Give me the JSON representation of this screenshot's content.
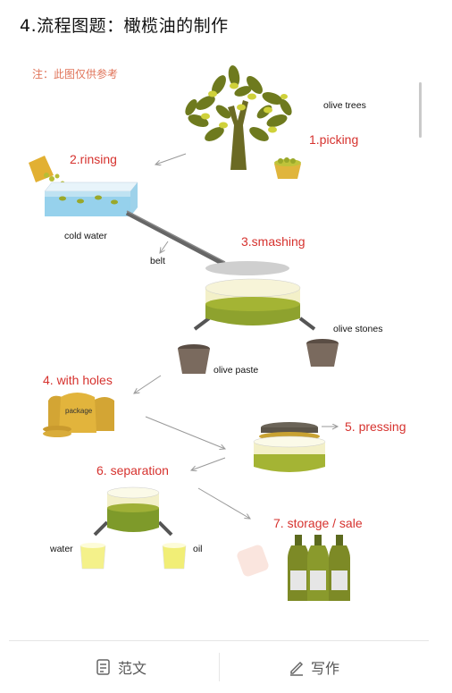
{
  "title": "4.流程图题：橄榄油的制作",
  "note": "注：此图仅供参考",
  "steps": {
    "s1": "1.picking",
    "s2": "2.rinsing",
    "s3": "3.smashing",
    "s4": "4. with holes",
    "s5": "5. pressing",
    "s6": "6. separation",
    "s7": "7. storage / sale"
  },
  "labels": {
    "olive_trees": "olive trees",
    "cold_water": "cold water",
    "belt": "belt",
    "olive_stones": "olive stones",
    "olive_paste": "olive paste",
    "package": "package",
    "water": "water",
    "oil": "oil"
  },
  "footer": {
    "essay": "范文",
    "write": "写作"
  },
  "colors": {
    "step_red": "#d6322e",
    "note_orange": "#e0745a",
    "olive_green": "#7d9a2c",
    "tree_brown": "#6b6a24"
  }
}
